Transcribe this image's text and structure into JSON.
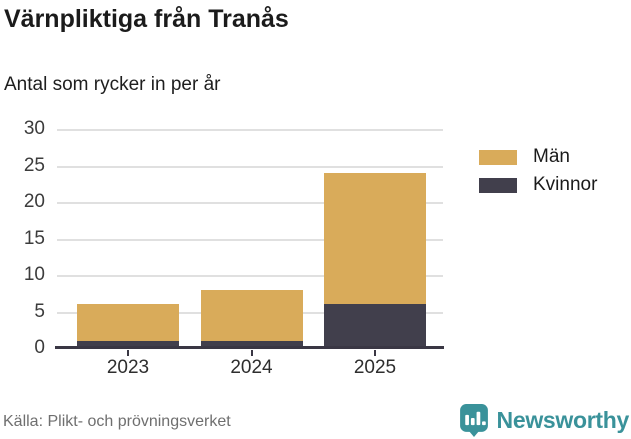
{
  "header": {
    "title": "Värnpliktiga från Tranås",
    "subtitle": "Antal som rycker in per år"
  },
  "footer": {
    "source": "Källa: Plikt- och prövningsverket",
    "brand": "Newsworthy"
  },
  "colors": {
    "men": "#d9ab5a",
    "women": "#413f4c",
    "brand_teal": "#3a929a",
    "grid": "#e0e0e0",
    "axis": "#3a3744",
    "title_text": "#1b1b1b",
    "muted_text": "#6f6f6f"
  },
  "chart_data": {
    "type": "bar",
    "stacked": true,
    "title": "Värnpliktiga från Tranås",
    "subtitle": "Antal som rycker in per år",
    "xlabel": "",
    "ylabel": "",
    "categories": [
      "2023",
      "2024",
      "2025"
    ],
    "series": [
      {
        "name": "Män",
        "color": "#d9ab5a",
        "values": [
          5,
          7,
          18
        ]
      },
      {
        "name": "Kvinnor",
        "color": "#413f4c",
        "values": [
          1,
          1,
          6
        ]
      }
    ],
    "stack_bottom_to_top": [
      "Kvinnor",
      "Män"
    ],
    "totals": [
      6,
      8,
      24
    ],
    "y_ticks": [
      0,
      5,
      10,
      15,
      20,
      25,
      30
    ],
    "ylim": [
      0,
      30
    ],
    "grid": true,
    "legend_position": "right"
  }
}
